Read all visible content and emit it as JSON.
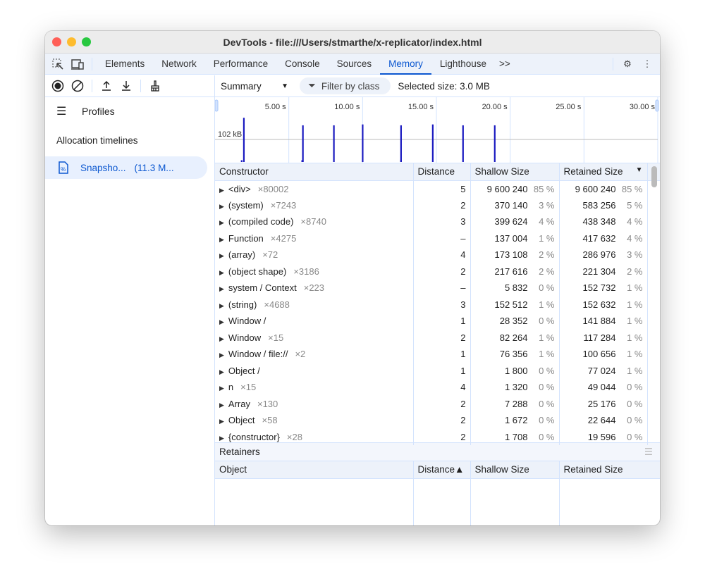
{
  "window": {
    "title": "DevTools - file:///Users/stmarthe/x-replicator/index.html"
  },
  "tabs": [
    "Elements",
    "Network",
    "Performance",
    "Console",
    "Sources",
    "Memory",
    "Lighthouse"
  ],
  "active_tab": "Memory",
  "more_tabs": ">>",
  "sidebar": {
    "profiles_label": "Profiles",
    "section": "Allocation timelines",
    "snapshot_name": "Snapsho...",
    "snapshot_size": "(11.3 M..."
  },
  "toolbar": {
    "view": "Summary",
    "filter_placeholder": "Filter by class",
    "selected_size": "Selected size: 3.0 MB"
  },
  "chart_data": {
    "type": "bar",
    "x_unit": "s",
    "x_ticks": [
      "5.00 s",
      "10.00 s",
      "15.00 s",
      "20.00 s",
      "25.00 s",
      "30.00 s"
    ],
    "xlim": [
      0,
      30
    ],
    "gridline_label": "102 kB",
    "points": [
      {
        "x": 1.8,
        "y": 8
      },
      {
        "x": 1.95,
        "y": 200
      },
      {
        "x": 5.9,
        "y": 8
      },
      {
        "x": 5.95,
        "y": 166
      },
      {
        "x": 8.05,
        "y": 166
      },
      {
        "x": 10.0,
        "y": 170
      },
      {
        "x": 12.6,
        "y": 10
      },
      {
        "x": 12.6,
        "y": 166
      },
      {
        "x": 14.75,
        "y": 170
      },
      {
        "x": 16.8,
        "y": 166
      },
      {
        "x": 18.95,
        "y": 166
      }
    ],
    "accent": "#1a1ac0"
  },
  "table": {
    "headers": [
      "Constructor",
      "Distance",
      "Shallow Size",
      "Retained Size"
    ],
    "rows": [
      [
        "<div>",
        "×80002",
        "5",
        "9 600 240",
        "85 %",
        "9 600 240",
        "85 %"
      ],
      [
        "(system)",
        "×7243",
        "2",
        "370 140",
        "3 %",
        "583 256",
        "5 %"
      ],
      [
        "(compiled code)",
        "×8740",
        "3",
        "399 624",
        "4 %",
        "438 348",
        "4 %"
      ],
      [
        "Function",
        "×4275",
        "–",
        "137 004",
        "1 %",
        "417 632",
        "4 %"
      ],
      [
        "(array)",
        "×72",
        "4",
        "173 108",
        "2 %",
        "286 976",
        "3 %"
      ],
      [
        "(object shape)",
        "×3186",
        "2",
        "217 616",
        "2 %",
        "221 304",
        "2 %"
      ],
      [
        "system / Context",
        "×223",
        "–",
        "5 832",
        "0 %",
        "152 732",
        "1 %"
      ],
      [
        "(string)",
        "×4688",
        "3",
        "152 512",
        "1 %",
        "152 632",
        "1 %"
      ],
      [
        "Window /",
        "",
        "1",
        "28 352",
        "0 %",
        "141 884",
        "1 %"
      ],
      [
        "Window",
        "×15",
        "2",
        "82 264",
        "1 %",
        "117 284",
        "1 %"
      ],
      [
        "Window / file://",
        "×2",
        "1",
        "76 356",
        "1 %",
        "100 656",
        "1 %"
      ],
      [
        "Object /",
        "",
        "1",
        "1 800",
        "0 %",
        "77 024",
        "1 %"
      ],
      [
        "n",
        "×15",
        "4",
        "1 320",
        "0 %",
        "49 044",
        "0 %"
      ],
      [
        "Array",
        "×130",
        "2",
        "7 288",
        "0 %",
        "25 176",
        "0 %"
      ],
      [
        "Object",
        "×58",
        "2",
        "1 672",
        "0 %",
        "22 644",
        "0 %"
      ],
      [
        "{constructor}",
        "×28",
        "2",
        "1 708",
        "0 %",
        "19 596",
        "0 %"
      ]
    ]
  },
  "retainers": {
    "title": "Retainers",
    "headers": [
      "Object",
      "Distance▲",
      "Shallow Size",
      "Retained Size"
    ]
  }
}
